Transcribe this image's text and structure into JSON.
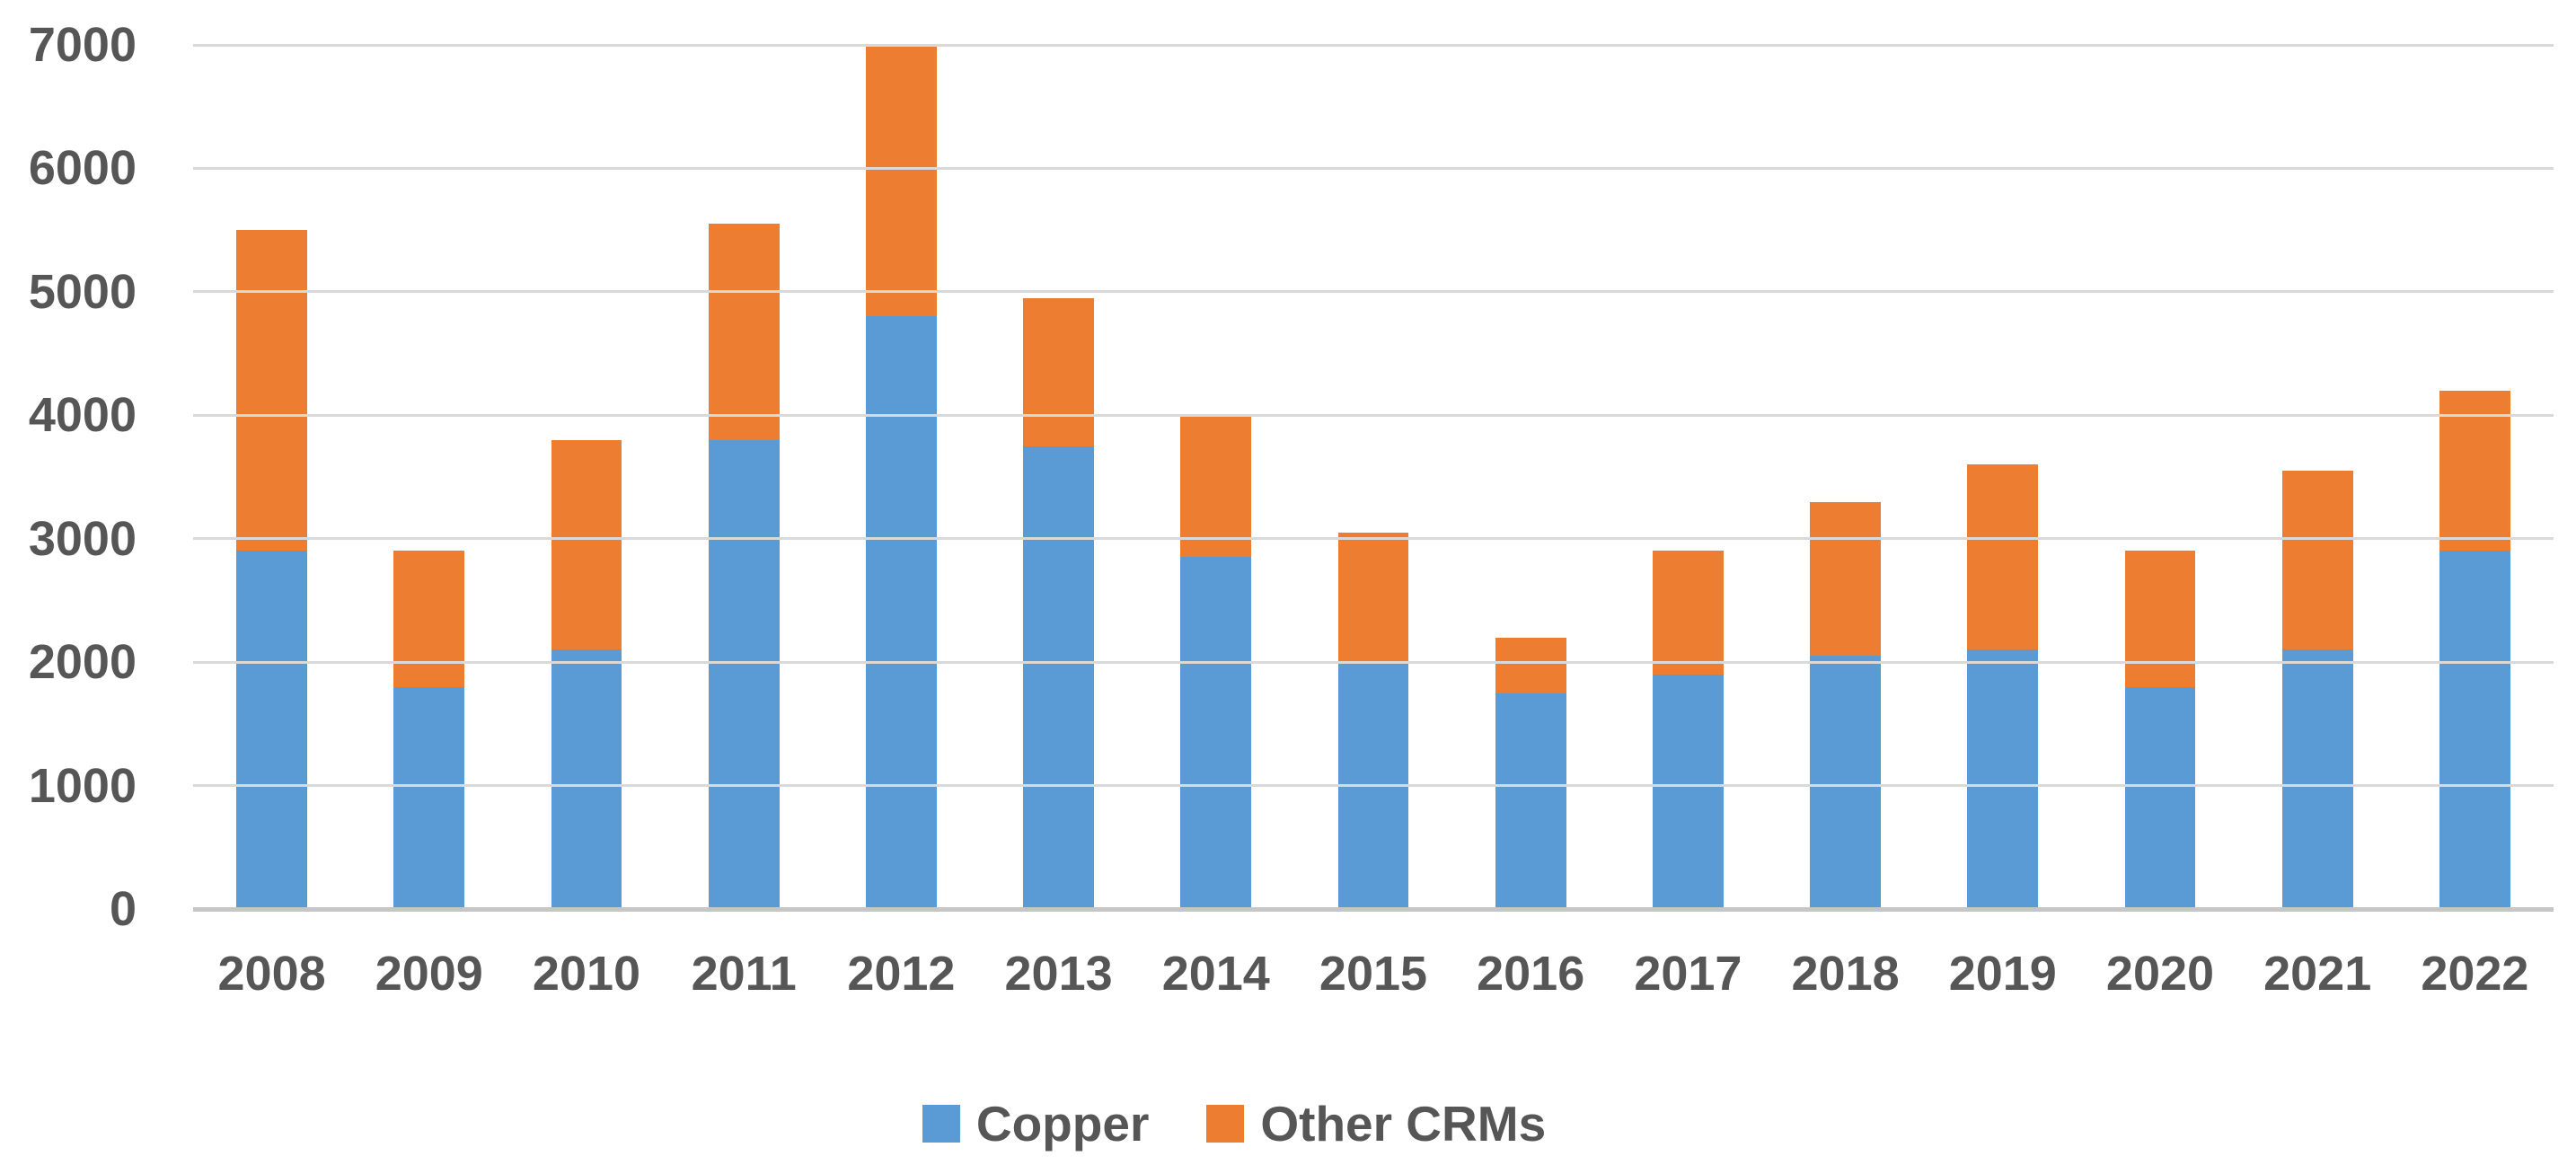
{
  "chart_data": {
    "type": "bar",
    "stacked": true,
    "title": "",
    "xlabel": "",
    "ylabel": "",
    "ylim": [
      0,
      7000
    ],
    "yticks": [
      0,
      1000,
      2000,
      3000,
      4000,
      5000,
      6000,
      7000
    ],
    "grid": true,
    "legend_position": "bottom",
    "categories": [
      "2008",
      "2009",
      "2010",
      "2011",
      "2012",
      "2013",
      "2014",
      "2015",
      "2016",
      "2017",
      "2018",
      "2019",
      "2020",
      "2021",
      "2022"
    ],
    "series": [
      {
        "name": "Copper",
        "color": "#5B9BD5",
        "values": [
          2900,
          1800,
          2100,
          3800,
          4800,
          3750,
          2850,
          2000,
          1750,
          1900,
          2050,
          2100,
          1800,
          2100,
          2900
        ]
      },
      {
        "name": "Other CRMs",
        "color": "#ED7D31",
        "values": [
          2600,
          1100,
          1700,
          1750,
          2200,
          1200,
          1150,
          1050,
          450,
          1000,
          1250,
          1500,
          1100,
          1450,
          1300
        ]
      }
    ]
  },
  "colors": {
    "gridline": "#d9d9d9",
    "axis_line": "#c6c6c6",
    "tick_text": "#565656",
    "background": "#ffffff"
  }
}
